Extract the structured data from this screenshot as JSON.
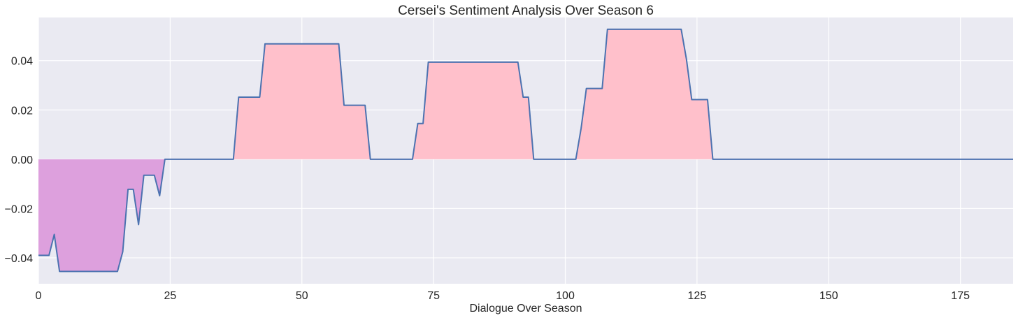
{
  "chart_data": {
    "type": "area",
    "title": "Cersei's Sentiment Analysis Over Season 6",
    "xlabel": "Dialogue Over Season",
    "ylabel": "",
    "xlim": [
      0,
      185
    ],
    "ylim": [
      -0.0505,
      0.0575
    ],
    "x_ticks": [
      0,
      25,
      50,
      75,
      100,
      125,
      150,
      175
    ],
    "y_ticks": [
      -0.04,
      -0.02,
      0.0,
      0.02,
      0.04
    ],
    "x_tick_labels": [
      "0",
      "25",
      "50",
      "75",
      "100",
      "125",
      "150",
      "175"
    ],
    "y_tick_labels": [
      "−0.04",
      "−0.02",
      "0.00",
      "0.02",
      "0.04"
    ],
    "grid": true,
    "legend": "none",
    "colors": {
      "background": "#eaeaf2",
      "grid": "#ffffff",
      "line": "#4c72b0",
      "positive_fill": "#ffc0cb",
      "negative_fill": "#dda0dd"
    },
    "series": [
      {
        "x": [
          0,
          2,
          3,
          4,
          15,
          16,
          17,
          18,
          19,
          20,
          22,
          23,
          24,
          37,
          38,
          42,
          43,
          57,
          58,
          62,
          63,
          71,
          72,
          73,
          74,
          91,
          92,
          93,
          94,
          102,
          103,
          104,
          107,
          108,
          122,
          123,
          124,
          127,
          128,
          185
        ],
        "y": [
          -0.039,
          -0.039,
          -0.0305,
          -0.0455,
          -0.0455,
          -0.0375,
          -0.0122,
          -0.0122,
          -0.0265,
          -0.0065,
          -0.0065,
          -0.0148,
          0.0,
          0.0,
          0.0252,
          0.0252,
          0.0468,
          0.0468,
          0.0219,
          0.0219,
          0.0,
          0.0,
          0.0145,
          0.0145,
          0.0394,
          0.0394,
          0.0252,
          0.0252,
          0.0,
          0.0,
          0.0125,
          0.0287,
          0.0287,
          0.0527,
          0.0527,
          0.0405,
          0.0242,
          0.0242,
          0.0,
          0.0
        ]
      }
    ]
  }
}
